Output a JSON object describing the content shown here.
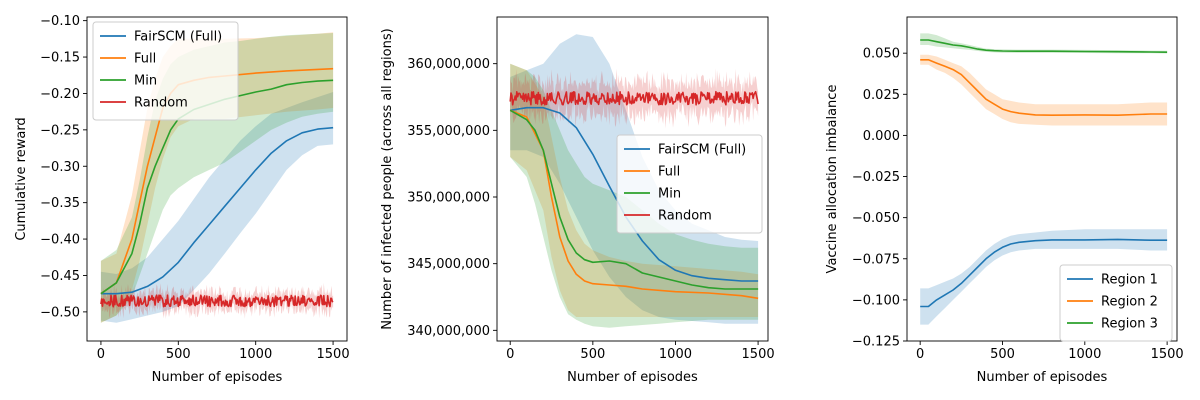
{
  "colors": {
    "blue": "#1f77b4",
    "orange": "#ff7f0e",
    "green": "#2ca02c",
    "red": "#d62728"
  },
  "chart_data": [
    {
      "type": "line",
      "xlabel": "Number of episodes",
      "ylabel": "Cumulative reward",
      "xlim": [
        -90,
        1590
      ],
      "ylim": [
        -0.54,
        -0.095
      ],
      "xticks": [
        0,
        500,
        1000,
        1500
      ],
      "yticks": [
        -0.5,
        -0.45,
        -0.4,
        -0.35,
        -0.3,
        -0.25,
        -0.2,
        -0.15,
        -0.1
      ],
      "ytick_labels": [
        "−0.50",
        "−0.45",
        "−0.40",
        "−0.35",
        "−0.30",
        "−0.25",
        "−0.20",
        "−0.15",
        "−0.10"
      ],
      "legend": "upper-left",
      "series": [
        {
          "name": "FairSCM (Full)",
          "color": "#1f77b4",
          "x": [
            0,
            100,
            200,
            300,
            400,
            500,
            600,
            700,
            800,
            900,
            1000,
            1100,
            1200,
            1300,
            1400,
            1500
          ],
          "y": [
            -0.475,
            -0.475,
            -0.473,
            -0.465,
            -0.452,
            -0.432,
            -0.405,
            -0.38,
            -0.355,
            -0.33,
            -0.305,
            -0.282,
            -0.265,
            -0.254,
            -0.249,
            -0.247
          ],
          "lower": [
            -0.512,
            -0.515,
            -0.51,
            -0.505,
            -0.5,
            -0.492,
            -0.47,
            -0.447,
            -0.42,
            -0.392,
            -0.365,
            -0.335,
            -0.305,
            -0.285,
            -0.272,
            -0.27
          ],
          "upper": [
            -0.445,
            -0.448,
            -0.44,
            -0.425,
            -0.4,
            -0.375,
            -0.345,
            -0.315,
            -0.29,
            -0.265,
            -0.245,
            -0.228,
            -0.22,
            -0.212,
            -0.205,
            -0.198
          ]
        },
        {
          "name": "Full",
          "color": "#ff7f0e",
          "x": [
            0,
            100,
            200,
            250,
            300,
            350,
            400,
            450,
            500,
            600,
            700,
            800,
            1000,
            1200,
            1400,
            1500
          ],
          "y": [
            -0.475,
            -0.46,
            -0.4,
            -0.35,
            -0.3,
            -0.26,
            -0.22,
            -0.2,
            -0.188,
            -0.182,
            -0.178,
            -0.176,
            -0.172,
            -0.169,
            -0.167,
            -0.166
          ],
          "lower": [
            -0.515,
            -0.505,
            -0.47,
            -0.43,
            -0.38,
            -0.33,
            -0.29,
            -0.26,
            -0.245,
            -0.235,
            -0.235,
            -0.235,
            -0.23,
            -0.225,
            -0.222,
            -0.22
          ],
          "upper": [
            -0.43,
            -0.42,
            -0.34,
            -0.28,
            -0.22,
            -0.18,
            -0.15,
            -0.135,
            -0.125,
            -0.125,
            -0.125,
            -0.125,
            -0.124,
            -0.121,
            -0.118,
            -0.116
          ]
        },
        {
          "name": "Min",
          "color": "#2ca02c",
          "x": [
            0,
            100,
            200,
            250,
            300,
            350,
            400,
            450,
            500,
            600,
            700,
            800,
            900,
            1000,
            1100,
            1200,
            1300,
            1400,
            1500
          ],
          "y": [
            -0.475,
            -0.46,
            -0.42,
            -0.38,
            -0.33,
            -0.3,
            -0.275,
            -0.25,
            -0.235,
            -0.222,
            -0.215,
            -0.208,
            -0.203,
            -0.198,
            -0.194,
            -0.188,
            -0.185,
            -0.183,
            -0.182
          ],
          "lower": [
            -0.515,
            -0.505,
            -0.48,
            -0.45,
            -0.42,
            -0.39,
            -0.36,
            -0.34,
            -0.33,
            -0.315,
            -0.305,
            -0.295,
            -0.28,
            -0.265,
            -0.25,
            -0.24,
            -0.232,
            -0.228,
            -0.225
          ],
          "upper": [
            -0.43,
            -0.415,
            -0.37,
            -0.32,
            -0.26,
            -0.21,
            -0.18,
            -0.16,
            -0.15,
            -0.14,
            -0.135,
            -0.13,
            -0.128,
            -0.125,
            -0.122,
            -0.12,
            -0.119,
            -0.118,
            -0.117
          ]
        },
        {
          "name": "Random",
          "color": "#d62728",
          "noise": true,
          "x_range": [
            0,
            1500
          ],
          "mean": -0.485,
          "amplitude": 0.008,
          "band_half_width": 0.012
        }
      ]
    },
    {
      "type": "line",
      "xlabel": "Number of episodes",
      "ylabel": "Number of infected people (across all regions)",
      "xlim": [
        -80,
        1560
      ],
      "ylim": [
        339200000,
        363500000
      ],
      "xticks": [
        0,
        500,
        1000,
        1500
      ],
      "yticks": [
        340000000,
        345000000,
        350000000,
        355000000,
        360000000
      ],
      "ytick_labels": [
        "340,000,000",
        "345,000,000",
        "350,000,000",
        "355,000,000",
        "360,000,000"
      ],
      "legend": "center-right",
      "series": [
        {
          "name": "FairSCM (Full)",
          "color": "#1f77b4",
          "x": [
            0,
            100,
            200,
            300,
            400,
            500,
            600,
            700,
            800,
            900,
            1000,
            1100,
            1200,
            1300,
            1400,
            1500
          ],
          "y": [
            356500000,
            356700000,
            356700000,
            356300000,
            355200000,
            353200000,
            350800000,
            348500000,
            346700000,
            345300000,
            344500000,
            344100000,
            343900000,
            343800000,
            343700000,
            343700000
          ],
          "lower": [
            353500000,
            353500000,
            353000000,
            351000000,
            348500000,
            346000000,
            344000000,
            342500000,
            341500000,
            341000000,
            340800000,
            340700000,
            340600000,
            340500000,
            340500000,
            340500000
          ],
          "upper": [
            359000000,
            359500000,
            360000000,
            361500000,
            362200000,
            362000000,
            360000000,
            356500000,
            353000000,
            350500000,
            349000000,
            348000000,
            347500000,
            347000000,
            346800000,
            346700000
          ]
        },
        {
          "name": "Full",
          "color": "#ff7f0e",
          "x": [
            0,
            100,
            200,
            250,
            300,
            350,
            400,
            450,
            500,
            600,
            700,
            800,
            1000,
            1200,
            1400,
            1500
          ],
          "y": [
            356500000,
            356000000,
            353500000,
            350000000,
            347000000,
            345200000,
            344200000,
            343700000,
            343500000,
            343400000,
            343300000,
            343100000,
            342900000,
            342800000,
            342600000,
            342400000
          ],
          "lower": [
            353000000,
            352000000,
            349000000,
            345500000,
            343000000,
            341500000,
            341000000,
            341000000,
            341000000,
            341000000,
            341000000,
            341000000,
            341000000,
            341000000,
            341000000,
            341000000
          ],
          "upper": [
            360000000,
            359500000,
            357500000,
            354500000,
            351500000,
            349000000,
            347500000,
            346500000,
            346000000,
            345500000,
            345200000,
            345000000,
            344800000,
            344600000,
            344400000,
            344200000
          ]
        },
        {
          "name": "Min",
          "color": "#2ca02c",
          "x": [
            0,
            100,
            150,
            200,
            250,
            300,
            350,
            400,
            450,
            500,
            600,
            700,
            800,
            900,
            1000,
            1100,
            1200,
            1300,
            1400,
            1500
          ],
          "y": [
            356500000,
            355800000,
            355000000,
            353500000,
            351000000,
            348500000,
            346800000,
            345800000,
            345300000,
            345100000,
            345200000,
            345000000,
            344300000,
            344000000,
            343700000,
            343400000,
            343200000,
            343100000,
            343100000,
            343100000
          ],
          "lower": [
            353000000,
            351500000,
            349500000,
            347000000,
            344500000,
            342500000,
            341200000,
            340800000,
            340500000,
            340300000,
            340200000,
            340300000,
            340400000,
            340500000,
            340600000,
            340700000,
            340800000,
            340800000,
            340800000,
            340800000
          ],
          "upper": [
            360000000,
            359500000,
            359000000,
            358000000,
            356500000,
            355000000,
            353500000,
            352500000,
            351500000,
            351000000,
            350500000,
            350000000,
            349000000,
            348000000,
            347200000,
            346800000,
            346500000,
            346300000,
            346200000,
            346200000
          ]
        },
        {
          "name": "Random",
          "color": "#d62728",
          "noise": true,
          "x_range": [
            0,
            1500
          ],
          "mean": 357400000,
          "amplitude": 500000,
          "band_half_width": 1200000
        }
      ]
    },
    {
      "type": "line",
      "xlabel": "Number of episodes",
      "ylabel": "Vaccine allocation imbalance",
      "xlim": [
        -80,
        1560
      ],
      "ylim": [
        -0.125,
        0.072
      ],
      "xticks": [
        0,
        500,
        1000,
        1500
      ],
      "yticks": [
        -0.125,
        -0.1,
        -0.075,
        -0.05,
        -0.025,
        0.0,
        0.025,
        0.05
      ],
      "ytick_labels": [
        "−0.125",
        "−0.100",
        "−0.075",
        "−0.050",
        "−0.025",
        "0.000",
        "0.025",
        "0.050"
      ],
      "legend": "lower-right",
      "series": [
        {
          "name": "Region 1",
          "color": "#1f77b4",
          "x": [
            0,
            50,
            100,
            150,
            200,
            250,
            300,
            350,
            400,
            450,
            500,
            550,
            600,
            700,
            800,
            1000,
            1200,
            1400,
            1500
          ],
          "y": [
            -0.104,
            -0.104,
            -0.1,
            -0.097,
            -0.094,
            -0.09,
            -0.085,
            -0.08,
            -0.075,
            -0.071,
            -0.068,
            -0.066,
            -0.065,
            -0.064,
            -0.0635,
            -0.0635,
            -0.0632,
            -0.0637,
            -0.0637
          ],
          "lower": [
            -0.115,
            -0.115,
            -0.11,
            -0.105,
            -0.1,
            -0.095,
            -0.09,
            -0.085,
            -0.08,
            -0.076,
            -0.073,
            -0.071,
            -0.07,
            -0.069,
            -0.069,
            -0.069,
            -0.069,
            -0.07,
            -0.07
          ],
          "upper": [
            -0.093,
            -0.093,
            -0.091,
            -0.089,
            -0.087,
            -0.084,
            -0.08,
            -0.075,
            -0.07,
            -0.066,
            -0.063,
            -0.061,
            -0.06,
            -0.059,
            -0.058,
            -0.057,
            -0.057,
            -0.057,
            -0.057
          ]
        },
        {
          "name": "Region 2",
          "color": "#ff7f0e",
          "x": [
            0,
            50,
            100,
            150,
            200,
            250,
            300,
            350,
            400,
            450,
            500,
            550,
            600,
            700,
            800,
            1000,
            1200,
            1400,
            1500
          ],
          "y": [
            0.046,
            0.046,
            0.044,
            0.042,
            0.04,
            0.037,
            0.032,
            0.027,
            0.022,
            0.019,
            0.016,
            0.0145,
            0.0135,
            0.0125,
            0.0123,
            0.0125,
            0.0123,
            0.013,
            0.013
          ],
          "lower": [
            0.043,
            0.043,
            0.04,
            0.038,
            0.035,
            0.031,
            0.026,
            0.021,
            0.016,
            0.013,
            0.01,
            0.008,
            0.007,
            0.0065,
            0.006,
            0.006,
            0.006,
            0.006,
            0.006
          ],
          "upper": [
            0.049,
            0.049,
            0.048,
            0.046,
            0.044,
            0.042,
            0.038,
            0.033,
            0.028,
            0.025,
            0.022,
            0.021,
            0.02,
            0.019,
            0.019,
            0.019,
            0.019,
            0.02,
            0.02
          ]
        },
        {
          "name": "Region 3",
          "color": "#2ca02c",
          "x": [
            0,
            50,
            100,
            150,
            200,
            250,
            300,
            350,
            400,
            450,
            500,
            600,
            800,
            1000,
            1200,
            1400,
            1500
          ],
          "y": [
            0.058,
            0.058,
            0.057,
            0.056,
            0.055,
            0.0545,
            0.0535,
            0.0525,
            0.0518,
            0.0515,
            0.0513,
            0.0512,
            0.0512,
            0.051,
            0.0509,
            0.0507,
            0.0506
          ],
          "lower": [
            0.055,
            0.055,
            0.054,
            0.0535,
            0.053,
            0.0525,
            0.052,
            0.0513,
            0.0508,
            0.0505,
            0.0503,
            0.0502,
            0.0502,
            0.0501,
            0.05,
            0.0499,
            0.0498
          ],
          "upper": [
            0.062,
            0.062,
            0.061,
            0.059,
            0.057,
            0.056,
            0.055,
            0.0538,
            0.0528,
            0.0525,
            0.0523,
            0.0522,
            0.0522,
            0.052,
            0.0519,
            0.0516,
            0.0515
          ]
        }
      ]
    }
  ]
}
